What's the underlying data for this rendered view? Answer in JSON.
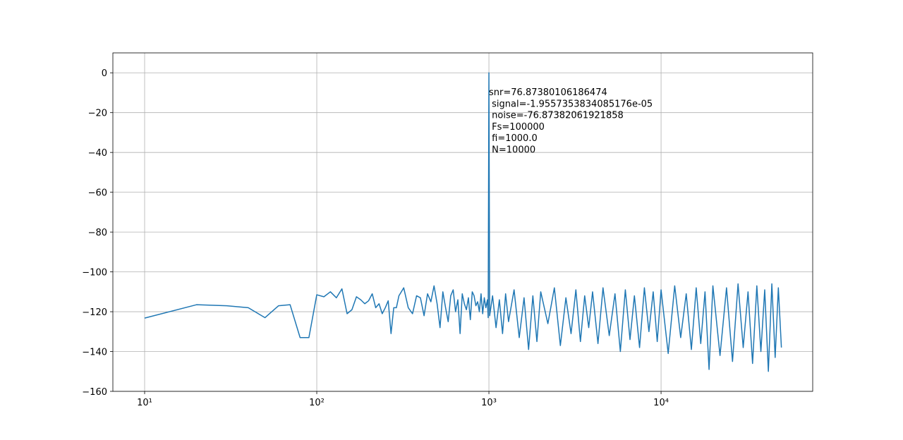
{
  "chart_data": {
    "type": "line",
    "xscale": "log",
    "grid": true,
    "color": "#1f77b4",
    "x": [
      10,
      20,
      30,
      40,
      50,
      60,
      70,
      80,
      90,
      100,
      110,
      120,
      130,
      140,
      150,
      160,
      170,
      180,
      190,
      200,
      210,
      220,
      230,
      240,
      250,
      260,
      270,
      280,
      290,
      300,
      320,
      340,
      360,
      380,
      400,
      420,
      440,
      460,
      480,
      500,
      520,
      540,
      560,
      580,
      600,
      620,
      640,
      660,
      680,
      700,
      720,
      740,
      760,
      780,
      800,
      820,
      840,
      860,
      880,
      900,
      920,
      940,
      960,
      980,
      990,
      1000,
      1010,
      1050,
      1100,
      1150,
      1200,
      1250,
      1300,
      1400,
      1500,
      1600,
      1700,
      1800,
      1900,
      2000,
      2200,
      2400,
      2600,
      2800,
      3000,
      3200,
      3400,
      3600,
      3800,
      4000,
      4300,
      4600,
      5000,
      5400,
      5800,
      6200,
      6600,
      7000,
      7500,
      8000,
      8500,
      9000,
      9500,
      10000,
      11000,
      12000,
      13000,
      14000,
      15000,
      16000,
      17000,
      18000,
      19000,
      20000,
      22000,
      24000,
      26000,
      28000,
      30000,
      32000,
      34000,
      36000,
      38000,
      40000,
      42000,
      44000,
      46000,
      48000,
      50000
    ],
    "values": [
      -123.2,
      -116.5,
      -117,
      -118,
      -123,
      -117,
      -116.5,
      -133,
      -133,
      -111.5,
      -112.5,
      -110,
      -113,
      -108.5,
      -121,
      -119,
      -112.5,
      -114,
      -116,
      -114.5,
      -111,
      -118,
      -116,
      -121,
      -118,
      -114.5,
      -131,
      -118,
      -118,
      -112,
      -108,
      -118,
      -121,
      -112,
      -113,
      -122,
      -111,
      -115,
      -107,
      -116,
      -128,
      -110,
      -118,
      -125,
      -112,
      -109,
      -120,
      -114,
      -131,
      -111,
      -116,
      -119,
      -113,
      -124,
      -110,
      -112,
      -117,
      -115,
      -120,
      -111,
      -121,
      -113,
      -118,
      -114,
      -123,
      0,
      -122,
      -112,
      -128,
      -114,
      -131,
      -111,
      -125,
      -109,
      -133,
      -113,
      -139,
      -112,
      -135,
      -110,
      -126,
      -108,
      -137,
      -113,
      -131,
      -109,
      -135,
      -112,
      -128,
      -110,
      -136,
      -108,
      -132,
      -111,
      -140,
      -109,
      -134,
      -112,
      -138,
      -108,
      -130,
      -110,
      -135,
      -109,
      -141,
      -107,
      -133,
      -111,
      -139,
      -108,
      -136,
      -110,
      -149,
      -107,
      -142,
      -108,
      -145,
      -106,
      -138,
      -110,
      -146,
      -107,
      -140,
      -109,
      -150,
      -106,
      -143,
      -108,
      -138
    ],
    "xlim": [
      6.54,
      76000
    ],
    "xticks": [
      {
        "value": 10,
        "label": "10¹"
      },
      {
        "value": 100,
        "label": "10²"
      },
      {
        "value": 1000,
        "label": "10³"
      },
      {
        "value": 10000,
        "label": "10⁴"
      }
    ],
    "ylim": [
      -160,
      10
    ],
    "yticks": [
      {
        "value": -160,
        "label": "−160"
      },
      {
        "value": -140,
        "label": "−140"
      },
      {
        "value": -120,
        "label": "−120"
      },
      {
        "value": -100,
        "label": "−100"
      },
      {
        "value": -80,
        "label": "−80"
      },
      {
        "value": -60,
        "label": "−60"
      },
      {
        "value": -40,
        "label": "−40"
      },
      {
        "value": -20,
        "label": "−20"
      },
      0
    ],
    "annotation": [
      "snr=76.87380106186474",
      " signal=-1.9557353834085176e-05",
      " noise=-76.87382061921858",
      " Fs=100000",
      " fi=1000.0",
      " N=10000"
    ]
  }
}
